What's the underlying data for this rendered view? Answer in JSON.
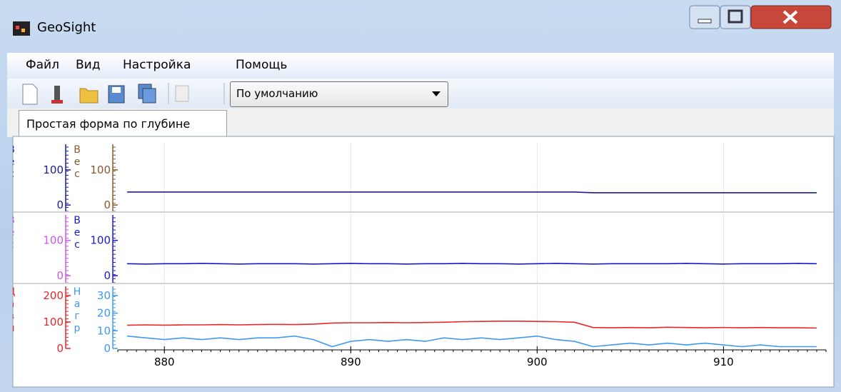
{
  "window": {
    "title": "GeoSight"
  },
  "menu": [
    "Файл",
    "Вид",
    "Настройка",
    "Помощь"
  ],
  "toolbar": {
    "preset": "По умолчанию"
  },
  "tab": "Простая форма по глубине",
  "chart_data": [
    {
      "type": "line",
      "x": [
        878,
        879,
        880,
        881,
        882,
        883,
        884,
        885,
        886,
        887,
        888,
        889,
        890,
        891,
        892,
        893,
        894,
        895,
        896,
        897,
        898,
        899,
        900,
        901,
        902,
        903,
        904,
        905,
        906,
        907,
        908,
        909,
        910,
        911,
        912,
        913,
        914,
        915
      ],
      "xlim": [
        877.5,
        915.5
      ],
      "grid": true,
      "ylabel": "Вес",
      "ycolor": "#1c1c94",
      "ylim": [
        -18,
        177
      ],
      "yticks": [
        0,
        100
      ],
      "y2label": "Вес",
      "y2color": "#8b5a2b",
      "y2lim": [
        -18,
        177
      ],
      "y2ticks": [
        0,
        100
      ],
      "series": [
        {
          "name": "Вес",
          "color": "#1c1c94",
          "axis": "y",
          "values": [
            37,
            37,
            37,
            37,
            37,
            37,
            37,
            37,
            37,
            37,
            37,
            37,
            37,
            37,
            37,
            37,
            37,
            37,
            37,
            37,
            37,
            37,
            37,
            37,
            37,
            35,
            35,
            35,
            35,
            35,
            35,
            35,
            35,
            35,
            35,
            35,
            35,
            35
          ]
        }
      ]
    },
    {
      "type": "line",
      "x": [
        878,
        879,
        880,
        881,
        882,
        883,
        884,
        885,
        886,
        887,
        888,
        889,
        890,
        891,
        892,
        893,
        894,
        895,
        896,
        897,
        898,
        899,
        900,
        901,
        902,
        903,
        904,
        905,
        906,
        907,
        908,
        909,
        910,
        911,
        912,
        913,
        914,
        915
      ],
      "xlim": [
        877.5,
        915.5
      ],
      "grid": true,
      "ylabel": "Вес",
      "ycolor": "#cc55ee",
      "ylim": [
        -20,
        176
      ],
      "yticks": [
        0,
        100
      ],
      "y2label": "Вес",
      "y2color": "#1a1acc",
      "y2lim": [
        -20,
        176
      ],
      "y2ticks": [
        0,
        100
      ],
      "series": [
        {
          "name": "Вес",
          "color": "#1a1acc",
          "axis": "y2",
          "values": [
            34,
            33,
            34,
            34,
            35,
            34,
            33,
            34,
            34,
            34,
            33,
            34,
            35,
            34,
            34,
            33,
            34,
            34,
            35,
            34,
            34,
            33,
            34,
            35,
            34,
            33,
            34,
            34,
            34,
            34,
            35,
            34,
            33,
            34,
            34,
            34,
            35,
            34
          ]
        }
      ]
    },
    {
      "type": "line",
      "x": [
        878,
        879,
        880,
        881,
        882,
        883,
        884,
        885,
        886,
        887,
        888,
        889,
        890,
        891,
        892,
        893,
        894,
        895,
        896,
        897,
        898,
        899,
        900,
        901,
        902,
        903,
        904,
        905,
        906,
        907,
        908,
        909,
        910,
        911,
        912,
        913,
        914,
        915
      ],
      "xlim": [
        877.5,
        915.5
      ],
      "xticks": [
        880,
        890,
        900,
        910
      ],
      "grid": true,
      "ylabel": "Давл",
      "ycolor": "#e8272a",
      "ylim": [
        0,
        240
      ],
      "yticks": [
        0,
        100,
        200
      ],
      "y2label": "Нагр",
      "y2color": "#3d9af5",
      "y2lim": [
        0,
        36
      ],
      "y2ticks": [
        0,
        10,
        20,
        30
      ],
      "series": [
        {
          "name": "Давл",
          "color": "#e8272a",
          "axis": "y",
          "values": [
            88,
            89,
            88,
            89,
            89,
            90,
            89,
            90,
            91,
            90,
            92,
            96,
            97,
            97,
            98,
            97,
            98,
            99,
            101,
            102,
            103,
            103,
            102,
            101,
            99,
            79,
            78,
            79,
            78,
            80,
            79,
            78,
            79,
            78,
            79,
            78,
            78,
            77
          ]
        },
        {
          "name": "Нагр",
          "color": "#3d9af5",
          "axis": "y2",
          "values": [
            7,
            6,
            5,
            6,
            5,
            6,
            5,
            6,
            6,
            7,
            5,
            1,
            4,
            5,
            4,
            5,
            4,
            6,
            5,
            6,
            5,
            6,
            7,
            5,
            4,
            1,
            2,
            3,
            2,
            3,
            2,
            3,
            2,
            1,
            2,
            1,
            1,
            1
          ]
        }
      ]
    }
  ]
}
